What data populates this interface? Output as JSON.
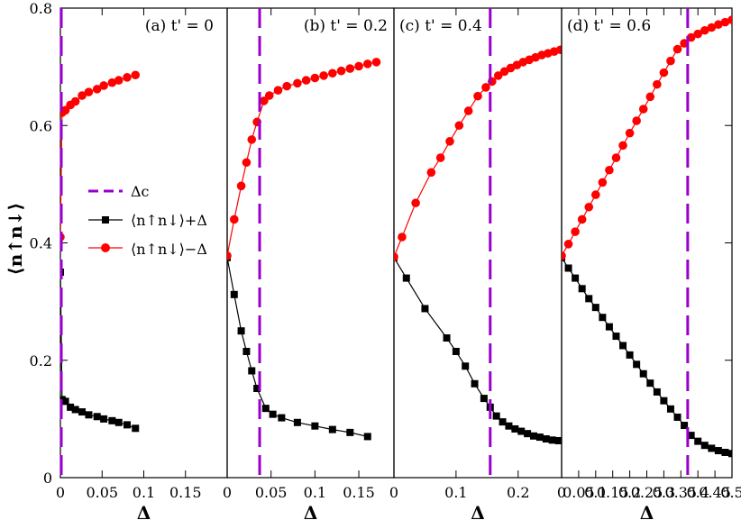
{
  "colors": {
    "red": "#ff0000",
    "black": "#000000",
    "critical": "#9900cc"
  },
  "labels": {
    "ylabel": "⟨n↑n↓⟩",
    "xlabel": "Δ",
    "legend": [
      "Δc",
      "⟨n↑n↓⟩+Δ",
      "⟨n↑n↓⟩−Δ"
    ]
  },
  "chart_data": [
    {
      "type": "line",
      "title": "(a) t' = 0",
      "xlabel": "Δ",
      "ylabel": "⟨n↑n↓⟩",
      "xlim": [
        0,
        0.2
      ],
      "ylim": [
        0,
        0.8
      ],
      "xticks": [
        0,
        0.05,
        0.1,
        0.15
      ],
      "xtick_labels": [
        "0",
        "0.05",
        "0.1",
        "0.15"
      ],
      "yticks": [
        0,
        0.2,
        0.4,
        0.6,
        0.8
      ],
      "ytick_labels": [
        "0",
        "0.2",
        "0.4",
        "0.6",
        "0.8"
      ],
      "delta_c": 0.0,
      "series": [
        {
          "name": "⟨n↑n↓⟩+Δ",
          "marker": "square",
          "x": [
            0,
            0.002,
            0.006,
            0.012,
            0.018,
            0.026,
            0.034,
            0.044,
            0.052,
            0.062,
            0.07,
            0.08,
            0.09
          ],
          "y": [
            0.35,
            0.133,
            0.13,
            0.12,
            0.116,
            0.112,
            0.107,
            0.104,
            0.1,
            0.097,
            0.094,
            0.09,
            0.084
          ]
        },
        {
          "name": "⟨n↑n↓⟩−Δ",
          "marker": "circle",
          "x": [
            0,
            0.002,
            0.006,
            0.012,
            0.018,
            0.026,
            0.034,
            0.044,
            0.052,
            0.062,
            0.07,
            0.08,
            0.09
          ],
          "y": [
            0.41,
            0.622,
            0.626,
            0.635,
            0.641,
            0.651,
            0.657,
            0.662,
            0.668,
            0.673,
            0.677,
            0.682,
            0.686
          ]
        }
      ]
    },
    {
      "type": "line",
      "title": "(b) t' = 0.2",
      "xlabel": "Δ",
      "xlim": [
        0,
        0.19
      ],
      "ylim": [
        0,
        0.8
      ],
      "xticks": [
        0,
        0.05,
        0.1,
        0.15
      ],
      "xtick_labels": [
        "0",
        "0.05",
        "0.1",
        "0.15"
      ],
      "delta_c": 0.037,
      "series": [
        {
          "name": "⟨n↑n↓⟩+Δ",
          "marker": "square",
          "x": [
            0,
            0.008,
            0.016,
            0.022,
            0.028,
            0.034,
            0.044,
            0.052,
            0.062,
            0.08,
            0.1,
            0.12,
            0.14,
            0.16
          ],
          "y": [
            0.375,
            0.312,
            0.25,
            0.215,
            0.182,
            0.152,
            0.118,
            0.108,
            0.102,
            0.094,
            0.088,
            0.082,
            0.077,
            0.07
          ]
        },
        {
          "name": "⟨n↑n↓⟩−Δ",
          "marker": "circle",
          "x": [
            0,
            0.008,
            0.016,
            0.022,
            0.028,
            0.034,
            0.042,
            0.048,
            0.058,
            0.068,
            0.08,
            0.09,
            0.1,
            0.11,
            0.12,
            0.13,
            0.14,
            0.15,
            0.16,
            0.17
          ],
          "y": [
            0.378,
            0.44,
            0.497,
            0.537,
            0.576,
            0.606,
            0.642,
            0.651,
            0.66,
            0.667,
            0.672,
            0.677,
            0.681,
            0.685,
            0.689,
            0.693,
            0.697,
            0.701,
            0.705,
            0.708
          ]
        }
      ]
    },
    {
      "type": "line",
      "title": "(c) t' = 0.4",
      "xlabel": "Δ",
      "xlim": [
        0,
        0.27
      ],
      "ylim": [
        0,
        0.8
      ],
      "xticks": [
        0,
        0.1,
        0.2
      ],
      "xtick_labels": [
        "0",
        "0.1",
        "0.2"
      ],
      "delta_c": 0.155,
      "series": [
        {
          "name": "⟨n↑n↓⟩+Δ",
          "marker": "square",
          "x": [
            0,
            0.02,
            0.05,
            0.085,
            0.1,
            0.115,
            0.13,
            0.145,
            0.155,
            0.165,
            0.175,
            0.185,
            0.195,
            0.205,
            0.215,
            0.225,
            0.235,
            0.245,
            0.255,
            0.265
          ],
          "y": [
            0.375,
            0.34,
            0.288,
            0.238,
            0.215,
            0.19,
            0.16,
            0.135,
            0.12,
            0.105,
            0.095,
            0.088,
            0.083,
            0.079,
            0.075,
            0.071,
            0.069,
            0.066,
            0.064,
            0.063
          ]
        },
        {
          "name": "⟨n↑n↓⟩−Δ",
          "marker": "circle",
          "x": [
            0,
            0.013,
            0.035,
            0.06,
            0.075,
            0.09,
            0.105,
            0.12,
            0.135,
            0.148,
            0.158,
            0.168,
            0.178,
            0.188,
            0.198,
            0.208,
            0.218,
            0.228,
            0.238,
            0.248,
            0.258,
            0.268
          ],
          "y": [
            0.376,
            0.41,
            0.468,
            0.52,
            0.545,
            0.573,
            0.6,
            0.625,
            0.65,
            0.665,
            0.675,
            0.685,
            0.692,
            0.698,
            0.703,
            0.708,
            0.712,
            0.716,
            0.72,
            0.723,
            0.726,
            0.729
          ]
        }
      ]
    },
    {
      "type": "line",
      "title": "(d) t' = 0.6",
      "xlabel": "Δ",
      "xlim": [
        0,
        0.5
      ],
      "ylim": [
        0,
        0.8
      ],
      "xticks": [
        0,
        0.05,
        0.1,
        0.15,
        0.2,
        0.25,
        0.3,
        0.35,
        0.4,
        0.45,
        0.5
      ],
      "xtick_labels": [
        "0",
        "0.05",
        "0.1",
        "0.15",
        "0.2",
        "0.25",
        "0.3",
        "0.35",
        "0.4",
        "0.45",
        "0.5"
      ],
      "delta_c": 0.37,
      "series": [
        {
          "name": "⟨n↑n↓⟩+Δ",
          "marker": "square",
          "x": [
            0,
            0.02,
            0.04,
            0.06,
            0.08,
            0.1,
            0.12,
            0.14,
            0.16,
            0.18,
            0.2,
            0.22,
            0.24,
            0.26,
            0.28,
            0.3,
            0.32,
            0.34,
            0.36,
            0.38,
            0.4,
            0.42,
            0.44,
            0.46,
            0.48,
            0.5
          ],
          "y": [
            0.375,
            0.357,
            0.34,
            0.322,
            0.305,
            0.29,
            0.273,
            0.257,
            0.241,
            0.225,
            0.209,
            0.193,
            0.177,
            0.161,
            0.146,
            0.131,
            0.117,
            0.103,
            0.089,
            0.072,
            0.062,
            0.055,
            0.05,
            0.046,
            0.043,
            0.041
          ]
        },
        {
          "name": "⟨n↑n↓⟩−Δ",
          "marker": "circle",
          "x": [
            0,
            0.02,
            0.04,
            0.06,
            0.08,
            0.1,
            0.12,
            0.14,
            0.16,
            0.18,
            0.2,
            0.22,
            0.24,
            0.26,
            0.28,
            0.3,
            0.32,
            0.34,
            0.36,
            0.38,
            0.4,
            0.42,
            0.44,
            0.46,
            0.48,
            0.5
          ],
          "y": [
            0.378,
            0.398,
            0.419,
            0.44,
            0.461,
            0.482,
            0.503,
            0.524,
            0.545,
            0.566,
            0.587,
            0.608,
            0.628,
            0.649,
            0.67,
            0.69,
            0.71,
            0.73,
            0.74,
            0.75,
            0.756,
            0.762,
            0.767,
            0.772,
            0.776,
            0.78
          ]
        }
      ]
    }
  ]
}
